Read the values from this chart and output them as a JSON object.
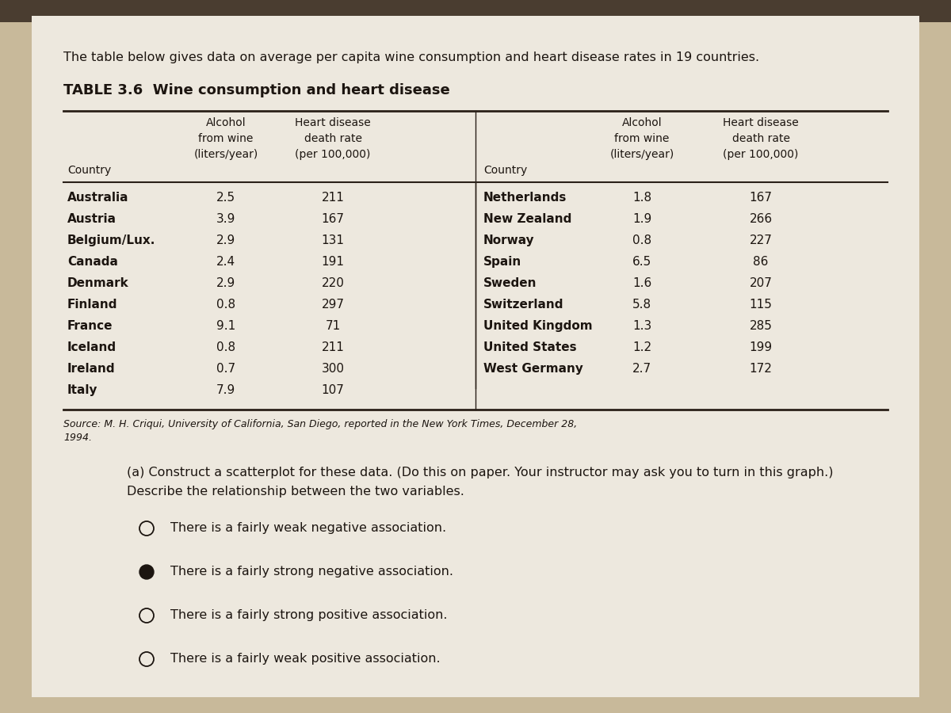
{
  "intro_text": "The table below gives data on average per capita wine consumption and heart disease rates in 19 countries.",
  "table_title": "TABLE 3.6  Wine consumption and heart disease",
  "left_data": [
    [
      "Australia",
      "2.5",
      "211"
    ],
    [
      "Austria",
      "3.9",
      "167"
    ],
    [
      "Belgium/Lux.",
      "2.9",
      "131"
    ],
    [
      "Canada",
      "2.4",
      "191"
    ],
    [
      "Denmark",
      "2.9",
      "220"
    ],
    [
      "Finland",
      "0.8",
      "297"
    ],
    [
      "France",
      "9.1",
      "71"
    ],
    [
      "Iceland",
      "0.8",
      "211"
    ],
    [
      "Ireland",
      "0.7",
      "300"
    ],
    [
      "Italy",
      "7.9",
      "107"
    ]
  ],
  "right_data": [
    [
      "Netherlands",
      "1.8",
      "167"
    ],
    [
      "New Zealand",
      "1.9",
      "266"
    ],
    [
      "Norway",
      "0.8",
      "227"
    ],
    [
      "Spain",
      "6.5",
      "86"
    ],
    [
      "Sweden",
      "1.6",
      "207"
    ],
    [
      "Switzerland",
      "5.8",
      "115"
    ],
    [
      "United Kingdom",
      "1.3",
      "285"
    ],
    [
      "United States",
      "1.2",
      "199"
    ],
    [
      "West Germany",
      "2.7",
      "172"
    ]
  ],
  "source_line1": "Source: M. H. Criqui, University of California, San Diego, reported in the New York Times, December 28,",
  "source_line2": "1994.",
  "question_line1": "(a) Construct a scatterplot for these data. (Do this on paper. Your instructor may ask you to turn in this graph.)",
  "question_line2": "Describe the relationship between the two variables.",
  "options": [
    {
      "text": "There is a fairly weak negative association.",
      "selected": false
    },
    {
      "text": "There is a fairly strong negative association.",
      "selected": true
    },
    {
      "text": "There is a fairly strong positive association.",
      "selected": false
    },
    {
      "text": "There is a fairly weak positive association.",
      "selected": false
    }
  ],
  "bg_top_color": "#8a7a68",
  "bg_main_color": "#c8b99a",
  "paper_color": "#ede8de",
  "text_color": "#1c1510",
  "line_color": "#2a2018"
}
